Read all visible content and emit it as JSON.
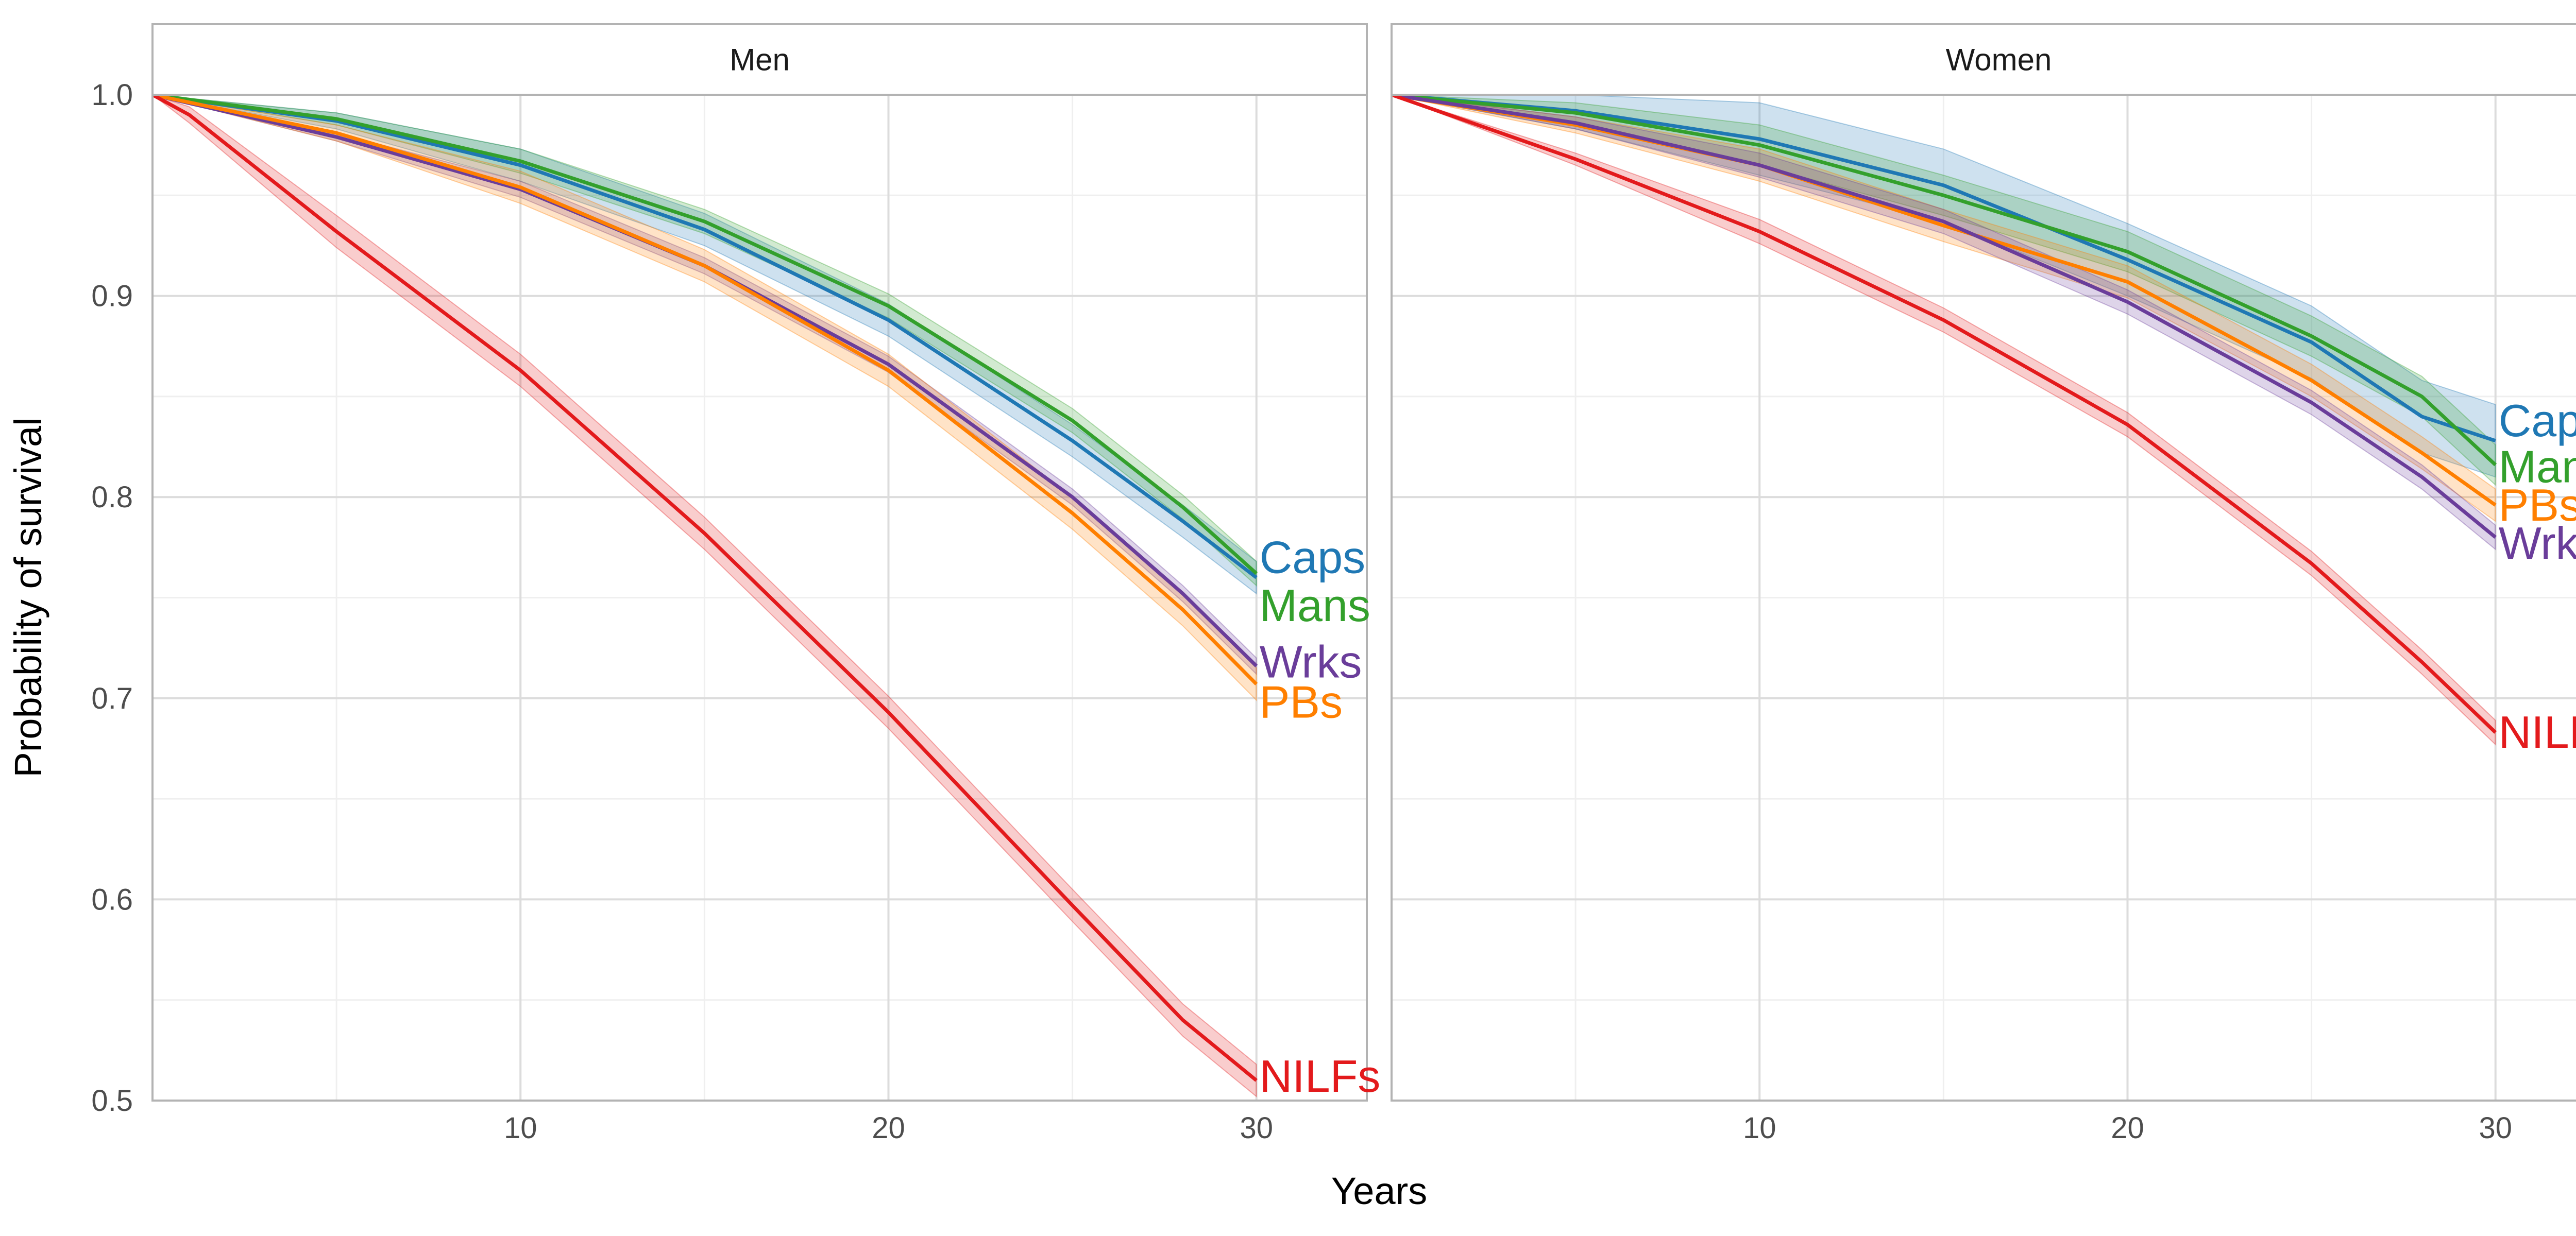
{
  "chart_data": {
    "type": "line",
    "facet_by": "sex",
    "xlabel": "Years",
    "ylabel": "Probability of survival",
    "xlim": [
      0,
      33
    ],
    "ylim": [
      0.5,
      1.0
    ],
    "x_ticks": [
      10,
      20,
      30
    ],
    "x_tick_labels": [
      "10",
      "20",
      "30"
    ],
    "y_ticks": [
      0.5,
      0.6,
      0.7,
      0.8,
      0.9,
      1.0
    ],
    "y_tick_labels": [
      "0.5",
      "0.6",
      "0.7",
      "0.8",
      "0.9",
      "1.0"
    ],
    "grid": true,
    "confidence_bands": true,
    "legend": "direct end labels",
    "colors": {
      "Caps": "#1f78b4",
      "Mans": "#33a02c",
      "Wrks": "#6a3d9a",
      "PBs": "#ff7f00",
      "NILFs": "#e31a1c"
    },
    "panels": [
      {
        "title": "Men",
        "series": [
          {
            "name": "Caps",
            "color": "#1f78b4",
            "x": [
              0,
              5,
              10,
              15,
              20,
              25,
              28,
              30
            ],
            "y": [
              1.0,
              0.987,
              0.965,
              0.933,
              0.888,
              0.828,
              0.788,
              0.76
            ],
            "band": 0.008
          },
          {
            "name": "Mans",
            "color": "#33a02c",
            "x": [
              0,
              5,
              10,
              15,
              20,
              25,
              28,
              30
            ],
            "y": [
              1.0,
              0.988,
              0.967,
              0.937,
              0.895,
              0.838,
              0.795,
              0.762
            ],
            "band": 0.006
          },
          {
            "name": "Wrks",
            "color": "#6a3d9a",
            "x": [
              0,
              5,
              10,
              15,
              20,
              25,
              28,
              30
            ],
            "y": [
              1.0,
              0.979,
              0.953,
              0.915,
              0.866,
              0.8,
              0.752,
              0.716
            ],
            "band": 0.004
          },
          {
            "name": "PBs",
            "color": "#ff7f00",
            "x": [
              0,
              5,
              10,
              15,
              20,
              25,
              28,
              30
            ],
            "y": [
              1.0,
              0.981,
              0.954,
              0.915,
              0.863,
              0.792,
              0.744,
              0.707
            ],
            "band": 0.008
          },
          {
            "name": "NILFs",
            "color": "#e31a1c",
            "x": [
              0,
              1,
              5,
              10,
              15,
              20,
              25,
              28,
              30
            ],
            "y": [
              1.0,
              0.99,
              0.932,
              0.863,
              0.782,
              0.693,
              0.597,
              0.54,
              0.51
            ],
            "band": 0.008
          }
        ],
        "end_labels": [
          {
            "text": "Caps",
            "series": "Caps",
            "y": 0.77
          },
          {
            "text": "Mans",
            "series": "Mans",
            "y": 0.746
          },
          {
            "text": "Wrks",
            "series": "Wrks",
            "y": 0.718
          },
          {
            "text": "PBs",
            "series": "PBs",
            "y": 0.698
          },
          {
            "text": "NILFs",
            "series": "NILFs",
            "y": 0.512
          }
        ]
      },
      {
        "title": "Women",
        "series": [
          {
            "name": "Caps",
            "color": "#1f78b4",
            "x": [
              0,
              5,
              10,
              15,
              20,
              25,
              28,
              30
            ],
            "y": [
              1.0,
              0.992,
              0.978,
              0.955,
              0.918,
              0.877,
              0.84,
              0.828
            ],
            "band": 0.018
          },
          {
            "name": "Mans",
            "color": "#33a02c",
            "x": [
              0,
              5,
              10,
              15,
              20,
              25,
              28,
              30
            ],
            "y": [
              1.0,
              0.991,
              0.975,
              0.95,
              0.922,
              0.88,
              0.85,
              0.816
            ],
            "band": 0.01
          },
          {
            "name": "PBs",
            "color": "#ff7f00",
            "x": [
              0,
              5,
              10,
              15,
              20,
              25,
              28,
              30
            ],
            "y": [
              1.0,
              0.985,
              0.965,
              0.935,
              0.907,
              0.858,
              0.822,
              0.796
            ],
            "band": 0.008
          },
          {
            "name": "Wrks",
            "color": "#6a3d9a",
            "x": [
              0,
              5,
              10,
              15,
              20,
              25,
              28,
              30
            ],
            "y": [
              1.0,
              0.986,
              0.965,
              0.937,
              0.897,
              0.847,
              0.81,
              0.78
            ],
            "band": 0.006
          },
          {
            "name": "NILFs",
            "color": "#e31a1c",
            "x": [
              0,
              5,
              10,
              15,
              20,
              25,
              28,
              30
            ],
            "y": [
              1.0,
              0.968,
              0.932,
              0.888,
              0.836,
              0.767,
              0.718,
              0.683
            ],
            "band": 0.006
          }
        ],
        "end_labels": [
          {
            "text": "Caps",
            "series": "Caps",
            "y": 0.838
          },
          {
            "text": "Mans",
            "series": "Mans",
            "y": 0.815
          },
          {
            "text": "PBs",
            "series": "PBs",
            "y": 0.796
          },
          {
            "text": "Wrks",
            "series": "Wrks",
            "y": 0.777
          },
          {
            "text": "NILFs",
            "series": "NILFs",
            "y": 0.683
          }
        ]
      }
    ]
  }
}
